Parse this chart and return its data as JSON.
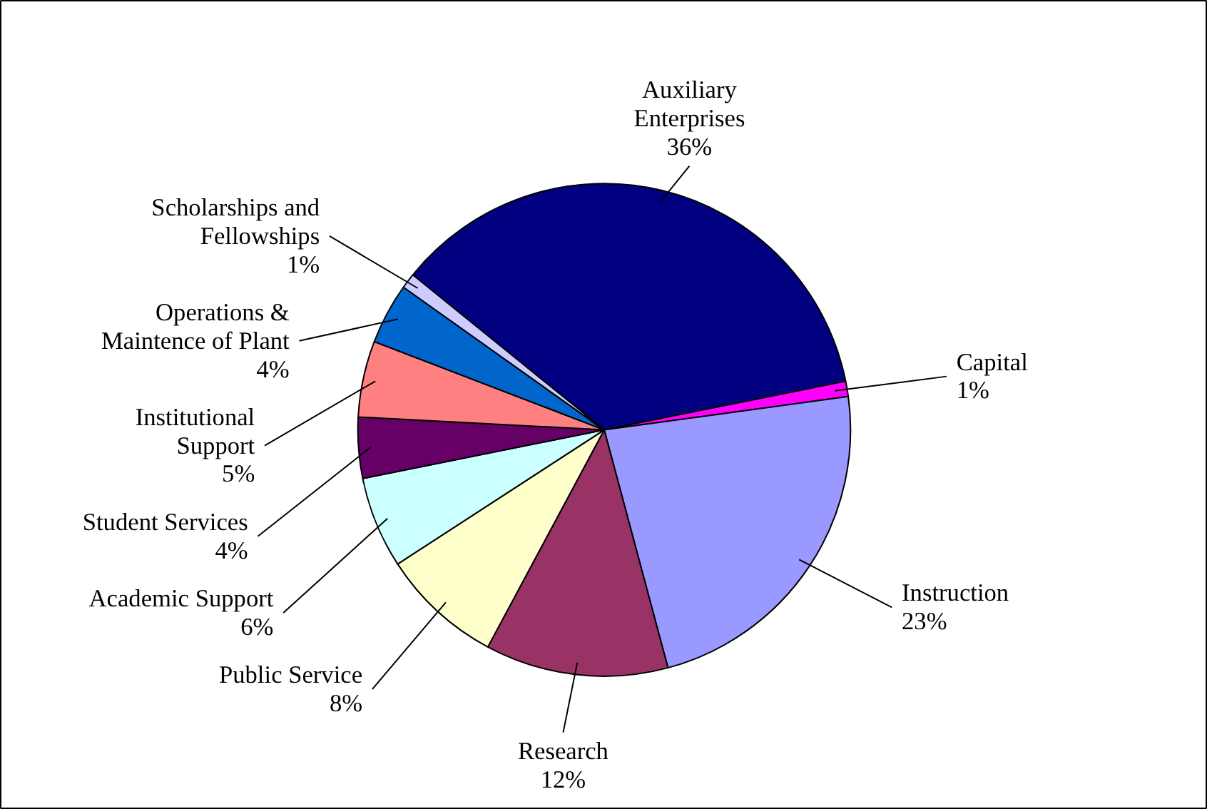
{
  "chart_data": {
    "type": "pie",
    "categories": [
      "Auxiliary Enterprises",
      "Capital",
      "Instruction",
      "Research",
      "Public Service",
      "Academic Support",
      "Student Services",
      "Institutional Support",
      "Operations & Maintence of Plant",
      "Scholarships and Fellowships"
    ],
    "values": [
      36,
      1,
      23,
      12,
      8,
      6,
      4,
      5,
      4,
      1
    ],
    "colors": [
      "#000080",
      "#ff00ff",
      "#9999ff",
      "#993366",
      "#ffffcc",
      "#ccffff",
      "#660066",
      "#ff8080",
      "#0066cc",
      "#ccccff"
    ],
    "value_labels": [
      "36%",
      "1%",
      "23%",
      "12%",
      "8%",
      "6%",
      "4%",
      "5%",
      "4%",
      "1%"
    ]
  }
}
